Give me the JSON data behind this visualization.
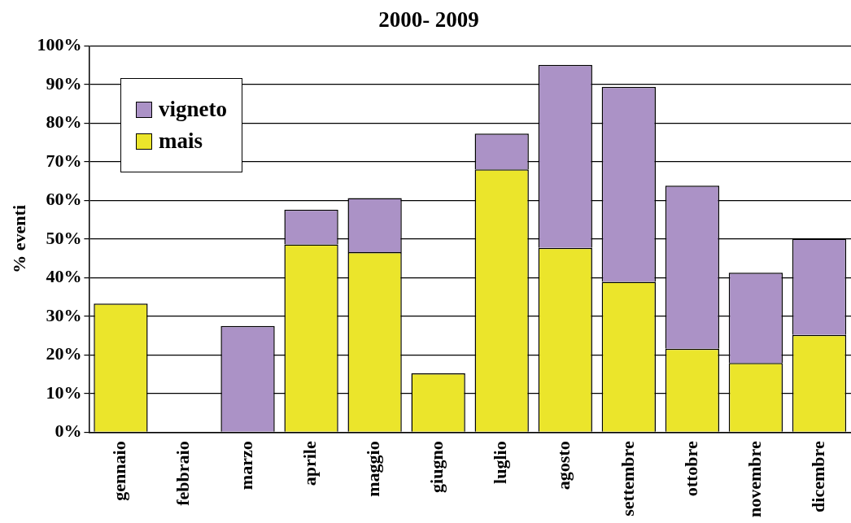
{
  "chart_data": {
    "type": "bar",
    "title": "2000- 2009",
    "ylabel": "% eventi",
    "categories": [
      "gennaio",
      "febbraio",
      "marzo",
      "aprile",
      "maggio",
      "giugno",
      "luglio",
      "agosto",
      "settembre",
      "ottobre",
      "novembre",
      "dicembre"
    ],
    "stacked": true,
    "series": [
      {
        "name": "mais",
        "color": "#ebe52b",
        "values": [
          33.3,
          0,
          0,
          48.6,
          46.6,
          15.2,
          68,
          47.7,
          38.9,
          21.6,
          17.9,
          25.2
        ]
      },
      {
        "name": "vigneto",
        "color": "#ab92c6",
        "values": [
          0,
          0,
          27.5,
          9,
          14,
          0,
          9.3,
          47.4,
          50.5,
          42.2,
          23.4,
          24.9
        ]
      }
    ],
    "ylim": [
      0,
      100
    ],
    "yticks": [
      {
        "value": 0,
        "label": "0%"
      },
      {
        "value": 10,
        "label": "10%"
      },
      {
        "value": 20,
        "label": "20%"
      },
      {
        "value": 30,
        "label": "30%"
      },
      {
        "value": 40,
        "label": "40%"
      },
      {
        "value": 50,
        "label": "50%"
      },
      {
        "value": 60,
        "label": "60%"
      },
      {
        "value": 70,
        "label": "70%"
      },
      {
        "value": 80,
        "label": "80%"
      },
      {
        "value": 90,
        "label": "90%"
      },
      {
        "value": 100,
        "label": "100%"
      }
    ],
    "grid": "y",
    "legend": "top left"
  }
}
